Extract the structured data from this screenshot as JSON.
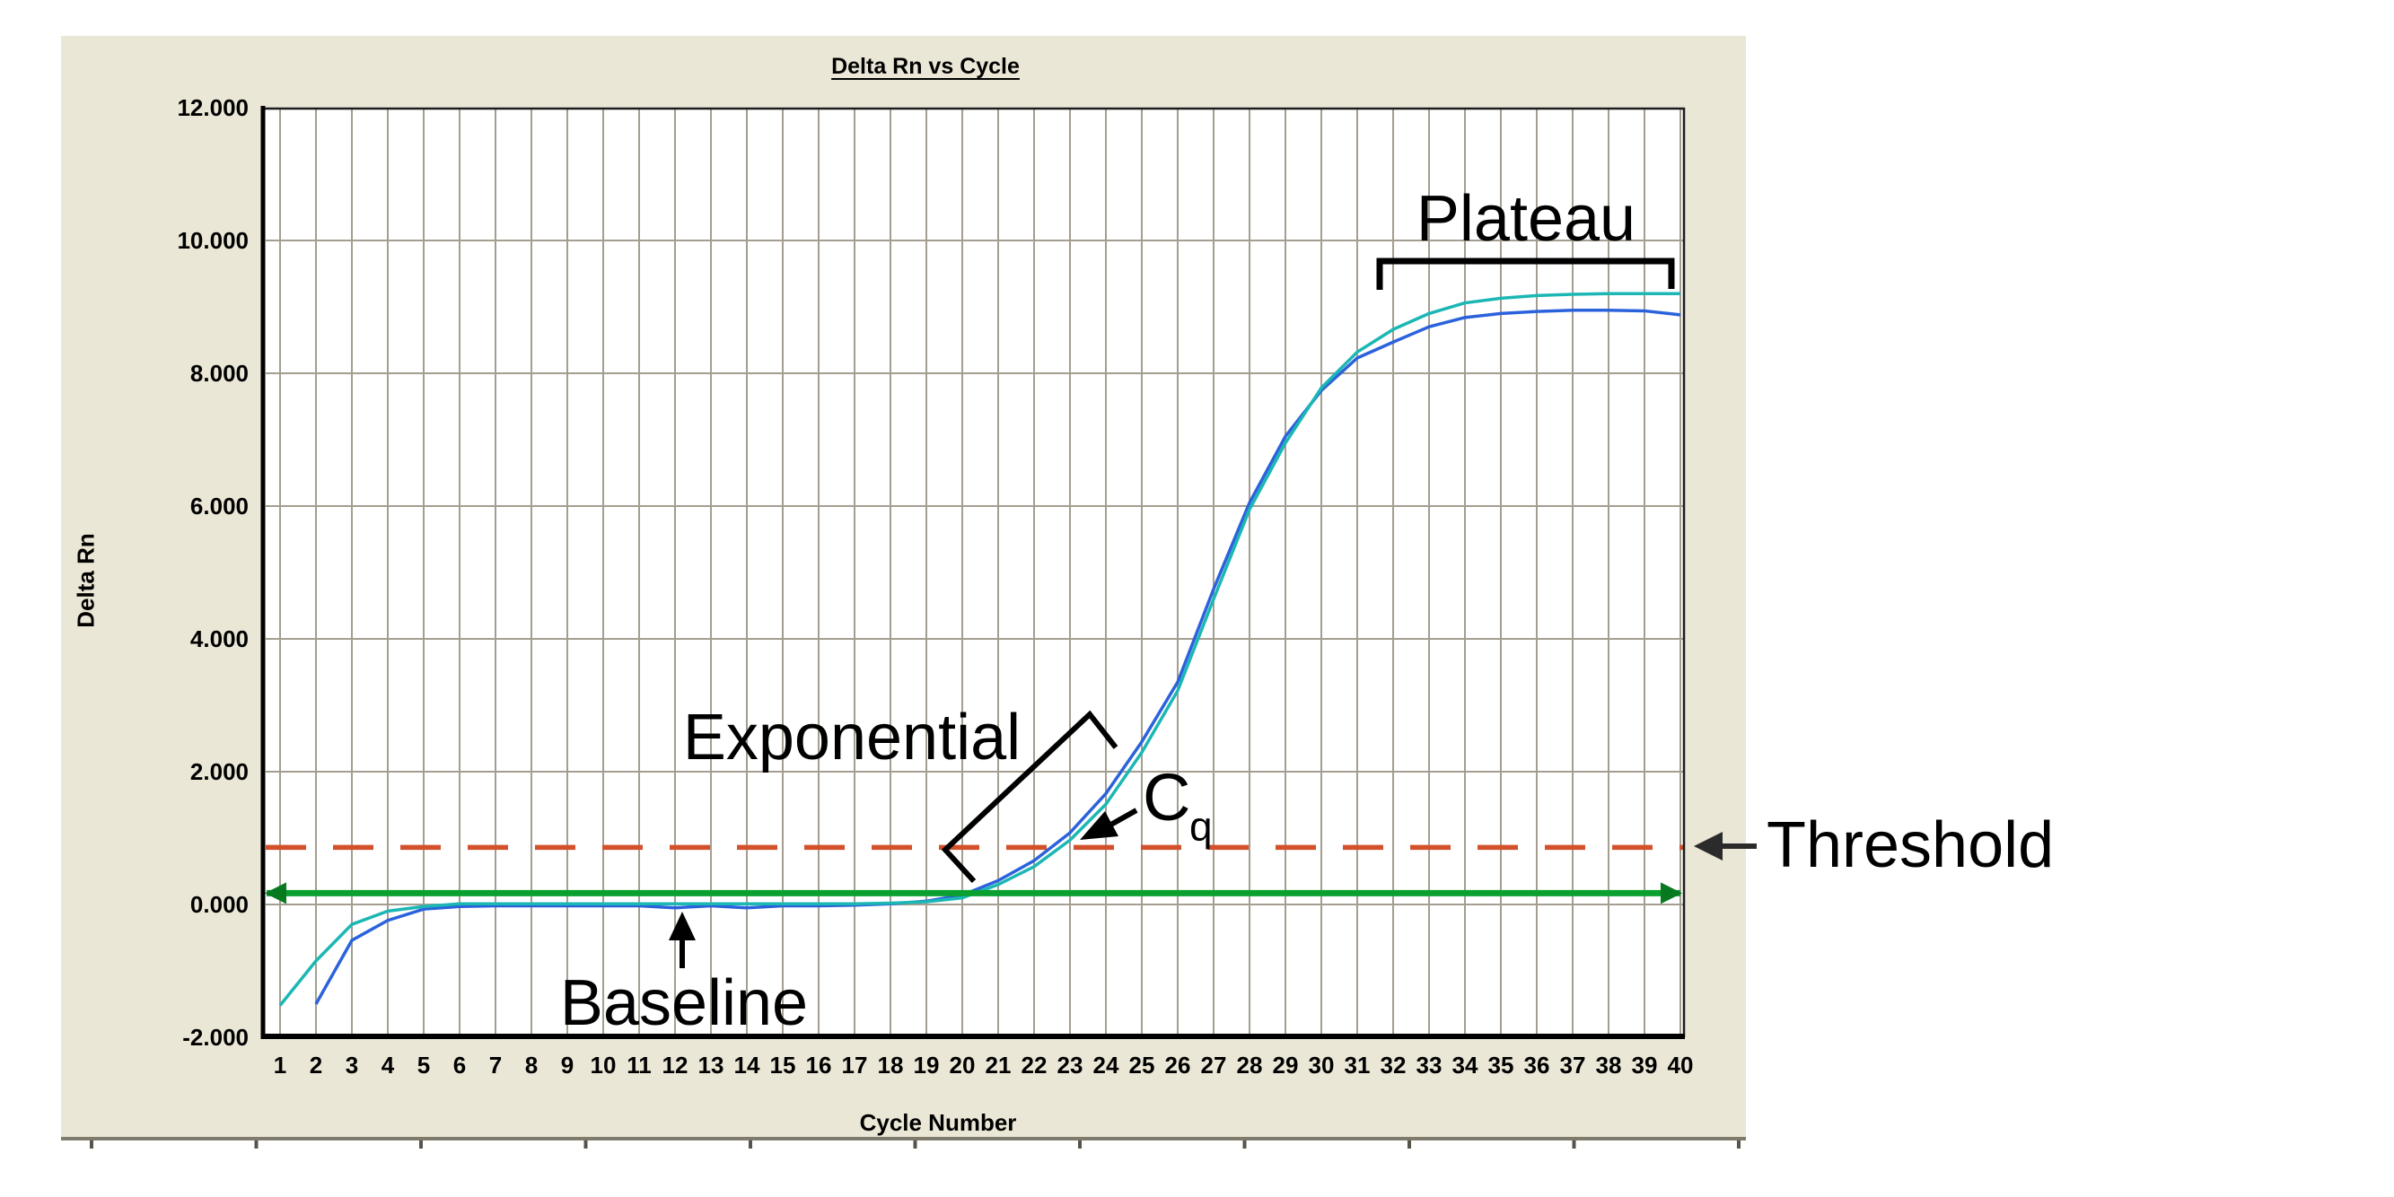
{
  "ui": {
    "title": "Delta Rn vs Cycle",
    "y_axis_label": "Delta Rn",
    "x_axis_label": "Cycle Number",
    "annotations": {
      "plateau": "Plateau",
      "exponential": "Exponential",
      "cq_main": "C",
      "cq_sub": "q",
      "baseline": "Baseline",
      "threshold": "Threshold"
    }
  },
  "colors": {
    "page_bg": "#FFFFFF",
    "panel_bg": "#EBE7D6",
    "plot_bg": "#FFFFFF",
    "gridline": "#A49E90",
    "axis_black": "#000000",
    "curve_blue": "#2B62DC",
    "curve_teal": "#1BB7B4",
    "baseline_green": "#0AA02F",
    "baseline_green_dark": "#077A20",
    "threshold_red": "#D2512B",
    "annotation_black": "#000000",
    "ruler_gray": "#7E7B6D"
  },
  "chart_data": {
    "type": "line",
    "title": "Delta Rn vs Cycle",
    "xlabel": "Cycle Number",
    "ylabel": "Delta Rn",
    "xlim": [
      1,
      40
    ],
    "ylim": [
      -2.0,
      12.0
    ],
    "grid": "both",
    "legend": "none",
    "x": [
      1,
      2,
      3,
      4,
      5,
      6,
      7,
      8,
      9,
      10,
      11,
      12,
      13,
      14,
      15,
      16,
      17,
      18,
      19,
      20,
      21,
      22,
      23,
      24,
      25,
      26,
      27,
      28,
      29,
      30,
      31,
      32,
      33,
      34,
      35,
      36,
      37,
      38,
      39,
      40
    ],
    "x_tick_labels": [
      "1",
      "2",
      "3",
      "4",
      "5",
      "6",
      "7",
      "8",
      "9",
      "10",
      "11",
      "12",
      "13",
      "14",
      "15",
      "16",
      "17",
      "18",
      "19",
      "20",
      "21",
      "22",
      "23",
      "24",
      "25",
      "26",
      "27",
      "28",
      "29",
      "30",
      "31",
      "32",
      "33",
      "34",
      "35",
      "36",
      "37",
      "38",
      "39",
      "40"
    ],
    "y_ticks": [
      {
        "label": "12.000",
        "value": 12
      },
      {
        "label": "10.000",
        "value": 10
      },
      {
        "label": "8.000",
        "value": 8
      },
      {
        "label": "6.000",
        "value": 6
      },
      {
        "label": "4.000",
        "value": 4
      },
      {
        "label": "2.000",
        "value": 2
      },
      {
        "label": "0.000",
        "value": 0
      },
      {
        "label": "-2.000",
        "value": -2
      }
    ],
    "series": [
      {
        "name": "amplification-curve-blue",
        "color": "#2B62DC",
        "values": [
          null,
          -1.5,
          -0.54,
          -0.24,
          -0.07,
          -0.03,
          -0.02,
          -0.02,
          -0.02,
          -0.02,
          -0.02,
          -0.05,
          -0.02,
          -0.05,
          -0.02,
          -0.02,
          -0.01,
          0.01,
          0.05,
          0.14,
          0.36,
          0.66,
          1.08,
          1.67,
          2.45,
          3.35,
          4.75,
          6.05,
          7.05,
          7.74,
          8.23,
          8.47,
          8.7,
          8.84,
          8.9,
          8.93,
          8.95,
          8.95,
          8.94,
          8.88
        ]
      },
      {
        "name": "amplification-curve-teal",
        "color": "#1BB7B4",
        "values": [
          -1.52,
          -0.85,
          -0.3,
          -0.1,
          -0.03,
          0.01,
          0.01,
          0.01,
          0.01,
          0.01,
          0.01,
          0.01,
          0.01,
          0.01,
          0.01,
          0.01,
          0.01,
          0.02,
          0.04,
          0.1,
          0.3,
          0.57,
          0.97,
          1.51,
          2.29,
          3.22,
          4.6,
          5.95,
          6.95,
          7.78,
          8.32,
          8.66,
          8.9,
          9.06,
          9.13,
          9.17,
          9.19,
          9.2,
          9.2,
          9.2
        ]
      }
    ],
    "reference_lines": [
      {
        "name": "baseline",
        "value": 0.17,
        "color": "#0AA02F",
        "style": "solid",
        "arrows": "both-ends"
      },
      {
        "name": "threshold",
        "value": 0.86,
        "color": "#D2512B",
        "style": "dashed"
      }
    ],
    "annotations": [
      {
        "text": "Plateau",
        "marks": "plateau phase bracket over cycles 32-40 at Delta Rn ~9.7"
      },
      {
        "text": "Exponential",
        "marks": "exponential phase bracket along cycles 20-24"
      },
      {
        "text": "Cq",
        "marks": "arrow at threshold crossing near cycle 23"
      },
      {
        "text": "Baseline",
        "marks": "up arrow at flat baseline near cycle 12"
      },
      {
        "text": "Threshold",
        "marks": "left arrow at right end of dashed threshold line"
      }
    ]
  }
}
